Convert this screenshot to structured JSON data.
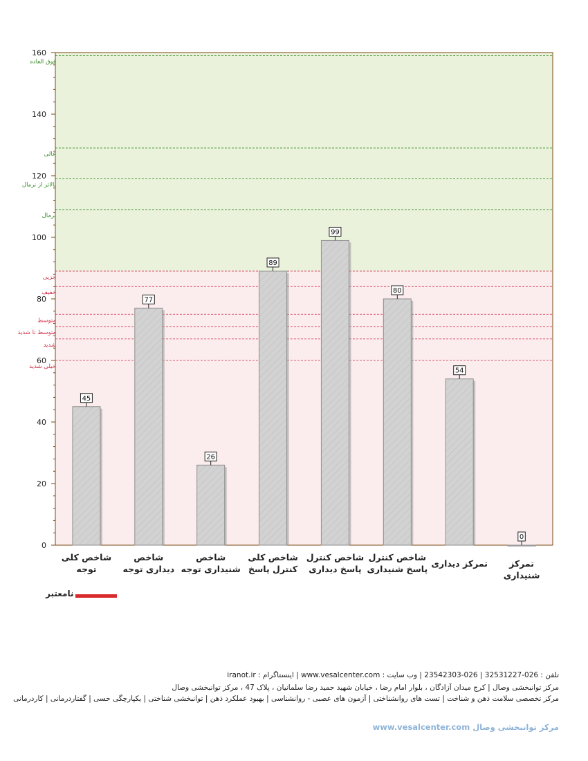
{
  "chart_data": {
    "type": "bar",
    "categories": [
      [
        "شاخص کلی",
        "توجه"
      ],
      [
        "شاخص",
        "دیداری توجه"
      ],
      [
        "شاخص",
        "شنیداری توجه"
      ],
      [
        "شاخص کلی",
        "کنترل پاسخ"
      ],
      [
        "شاخص کنترل",
        "پاسخ دیداری"
      ],
      [
        "شاخص کنترل",
        "پاسخ شنیداری"
      ],
      [
        "تمرکز دیداری"
      ],
      [
        "تمرکز شنیداری"
      ]
    ],
    "values": [
      45,
      77,
      26,
      89,
      99,
      80,
      54,
      0
    ],
    "ylim": [
      0,
      160
    ],
    "yticks": [
      0,
      20,
      40,
      60,
      80,
      100,
      120,
      140,
      160
    ],
    "bands": [
      {
        "from": 89,
        "to": 160,
        "color": "#eaf2dc"
      },
      {
        "from": 0,
        "to": 89,
        "color": "#fbeced"
      }
    ],
    "thresholds": [
      {
        "value": 159,
        "label": "فوق العاده",
        "color": "#3a8f2a"
      },
      {
        "value": 129,
        "label": "عالی",
        "color": "#3a8f2a"
      },
      {
        "value": 119,
        "label": "بالاتر از نرمال",
        "color": "#3a8f2a"
      },
      {
        "value": 109,
        "label": "نرمال",
        "color": "#3a8f2a"
      },
      {
        "value": 89,
        "label": "جزیی",
        "color": "#d0304a"
      },
      {
        "value": 84,
        "label": "خفیف",
        "color": "#d0304a"
      },
      {
        "value": 75,
        "label": "متوسط",
        "color": "#d0304a"
      },
      {
        "value": 71,
        "label": "متوسط تا شدید",
        "color": "#d0304a"
      },
      {
        "value": 67,
        "label": "شدید",
        "color": "#d0304a"
      },
      {
        "value": 60,
        "label": "خیلی شدید",
        "color": "#d0304a"
      }
    ],
    "bar_color": "#d2d2d2",
    "axis_color": "#7a4a14",
    "legend": [
      {
        "name": "نامعتبر",
        "color": "#d92b2b"
      }
    ],
    "grid": false
  },
  "footer": {
    "line1": "تلفن : 026-32531227   |   026-23542303   |   وب سایت : www.vesalcenter.com   |   اینستاگرام : iranot.ir",
    "line2": "مرکز توانبخشی وصال | کرج میدان آزادگان ، بلوار امام رضا ، خیابان شهید حمید رضا سلمانیان ، پلاک 47 ، مرکز توانبخشی وصال",
    "line3": "مرکز تخصصی سلامت ذهن و شناخت | تست های روانشناختی | آزمون های عصبی - روانشناسی | بهبود عملکرد ذهن | توانبخشی شناختی | یکپارچگی حسی | گفتاردرمانی | کاردرمانی",
    "brand": "مرکز توانبخشی وصال www.vesalcenter.com"
  }
}
